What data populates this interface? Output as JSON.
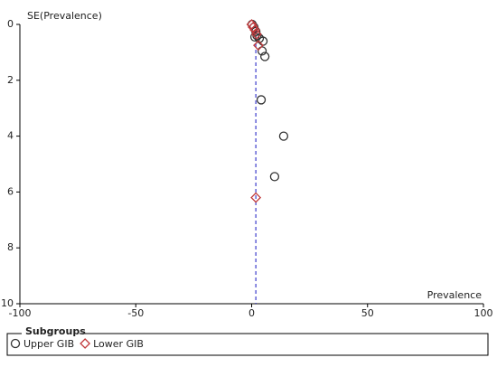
{
  "chart_data": {
    "type": "scatter",
    "y_label": "SE(Prevalence)",
    "x_label": "Prevalence",
    "xlim": [
      -100,
      100
    ],
    "xticks": [
      -100,
      -50,
      0,
      50,
      100
    ],
    "ylim": [
      0,
      10
    ],
    "yticks": [
      0,
      2,
      4,
      6,
      8,
      10
    ],
    "y_inverted": true,
    "reference_line": {
      "x": 1.8,
      "color": "#3b3bcc"
    },
    "legend_title": "Subgroups",
    "series": [
      {
        "name": "Upper GIB",
        "color": "#333333",
        "marker": "circle",
        "x": [
          0.2,
          1.0,
          1.8,
          2.3,
          1.4,
          3.3,
          4.9,
          4.5,
          5.7,
          4.1,
          13.8,
          9.9
        ],
        "values": [
          0.0,
          0.1,
          0.25,
          0.4,
          0.45,
          0.5,
          0.6,
          0.95,
          1.15,
          2.7,
          4.0,
          5.45
        ]
      },
      {
        "name": "Lower GIB",
        "color": "#c0393b",
        "marker": "diamond",
        "x": [
          0.0,
          0.6,
          1.4,
          2.1,
          2.9,
          1.8
        ],
        "values": [
          0.0,
          0.1,
          0.2,
          0.35,
          0.75,
          6.2
        ]
      }
    ]
  }
}
